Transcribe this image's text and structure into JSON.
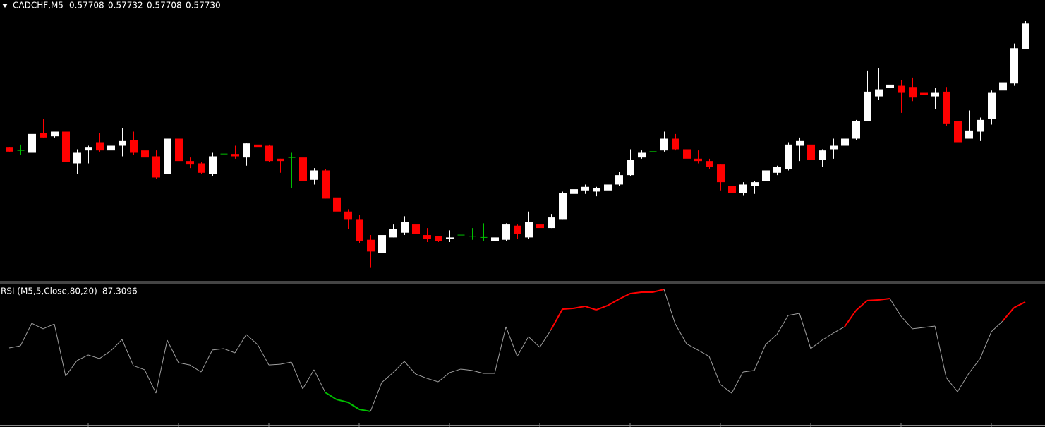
{
  "chart_data": [
    {
      "type": "candlestick",
      "title": "CADCHF,M5",
      "ohlc_labels": [
        "0.57708",
        "0.57732",
        "0.57708",
        "0.57730"
      ],
      "bull_color": "#ffffff",
      "bear_color": "#ff0000",
      "doji_color": "#00c000",
      "ylim": [
        0.57508,
        0.5775
      ],
      "open": [
        0.57625,
        0.57622,
        0.5762,
        0.57637,
        0.57634,
        0.57638,
        0.57611,
        0.57622,
        0.57629,
        0.57622,
        0.57626,
        0.57631,
        0.57622,
        0.57617,
        0.57602,
        0.57632,
        0.57613,
        0.57611,
        0.57602,
        0.57619,
        0.57619,
        0.57616,
        0.57627,
        0.57626,
        0.57615,
        0.57616,
        0.57616,
        0.57597,
        0.57605,
        0.57582,
        0.5757,
        0.57563,
        0.57546,
        0.57535,
        0.57548,
        0.57552,
        0.57559,
        0.5755,
        0.57549,
        0.57547,
        0.5755,
        0.57549,
        0.57548,
        0.57545,
        0.57546,
        0.57558,
        0.57548,
        0.57559,
        0.57556,
        0.57563,
        0.57585,
        0.57588,
        0.57587,
        0.57588,
        0.57593,
        0.57601,
        0.57616,
        0.57621,
        0.57622,
        0.57632,
        0.57623,
        0.57615,
        0.57613,
        0.5761,
        0.57592,
        0.57586,
        0.57592,
        0.57596,
        0.57603,
        0.57606,
        0.57626,
        0.57627,
        0.57614,
        0.57623,
        0.57626,
        0.57632,
        0.57647,
        0.57668,
        0.57675,
        0.57677,
        0.57676,
        0.57671,
        0.57668,
        0.57672,
        0.57647,
        0.57632,
        0.57638,
        0.57649,
        0.57673,
        0.57679,
        0.57708
      ],
      "high": [
        0.57625,
        0.57627,
        0.57643,
        0.57649,
        0.57638,
        0.57638,
        0.57623,
        0.57626,
        0.57637,
        0.57632,
        0.57641,
        0.57638,
        0.57625,
        0.57622,
        0.57632,
        0.57632,
        0.57616,
        0.57612,
        0.5762,
        0.57627,
        0.57626,
        0.57628,
        0.57641,
        0.57627,
        0.57615,
        0.5762,
        0.57619,
        0.57607,
        0.57606,
        0.57583,
        0.57572,
        0.57567,
        0.5755,
        0.5755,
        0.57559,
        0.57566,
        0.5756,
        0.57556,
        0.57549,
        0.57554,
        0.57556,
        0.57556,
        0.5756,
        0.5755,
        0.5756,
        0.57559,
        0.5757,
        0.5756,
        0.57568,
        0.57587,
        0.57595,
        0.57593,
        0.57591,
        0.57599,
        0.57604,
        0.57623,
        0.57622,
        0.57628,
        0.57638,
        0.57636,
        0.57627,
        0.57622,
        0.57615,
        0.5761,
        0.57594,
        0.57595,
        0.57596,
        0.57605,
        0.57609,
        0.57629,
        0.57633,
        0.57634,
        0.57623,
        0.57632,
        0.57639,
        0.57648,
        0.5769,
        0.57692,
        0.57694,
        0.57682,
        0.57684,
        0.57685,
        0.57675,
        0.57676,
        0.57647,
        0.57656,
        0.5765,
        0.57673,
        0.57698,
        0.57713,
        0.57732
      ],
      "low": [
        0.57621,
        0.57618,
        0.5762,
        0.57633,
        0.57633,
        0.57611,
        0.57602,
        0.57611,
        0.57621,
        0.57621,
        0.57617,
        0.57618,
        0.57614,
        0.57598,
        0.57602,
        0.57607,
        0.57607,
        0.57602,
        0.576,
        0.57613,
        0.57615,
        0.57609,
        0.57624,
        0.57612,
        0.57603,
        0.5759,
        0.57596,
        0.57593,
        0.57581,
        0.57568,
        0.57555,
        0.57543,
        0.57522,
        0.57534,
        0.57548,
        0.5755,
        0.57548,
        0.57544,
        0.57544,
        0.57544,
        0.57547,
        0.57546,
        0.57545,
        0.57543,
        0.57545,
        0.57547,
        0.57547,
        0.57548,
        0.57556,
        0.57563,
        0.57584,
        0.57585,
        0.57583,
        0.57583,
        0.57592,
        0.576,
        0.57615,
        0.57614,
        0.57621,
        0.57622,
        0.57614,
        0.57611,
        0.57606,
        0.57588,
        0.57579,
        0.57584,
        0.57585,
        0.57584,
        0.57601,
        0.57605,
        0.57613,
        0.57612,
        0.57608,
        0.57615,
        0.57615,
        0.57631,
        0.57647,
        0.57665,
        0.57672,
        0.57654,
        0.57664,
        0.57668,
        0.57657,
        0.57643,
        0.57625,
        0.57632,
        0.5763,
        0.57644,
        0.57671,
        0.57677,
        0.57708
      ],
      "close": [
        0.57621,
        0.57622,
        0.57636,
        0.57633,
        0.57638,
        0.57612,
        0.5762,
        0.57625,
        0.57622,
        0.57626,
        0.5763,
        0.5762,
        0.57616,
        0.57599,
        0.57632,
        0.57613,
        0.5761,
        0.57603,
        0.57617,
        0.57619,
        0.57617,
        0.57628,
        0.57625,
        0.57613,
        0.57613,
        0.57616,
        0.57596,
        0.57605,
        0.57581,
        0.5757,
        0.57563,
        0.57545,
        0.57536,
        0.5755,
        0.57555,
        0.57561,
        0.57551,
        0.57547,
        0.57545,
        0.57548,
        0.5755,
        0.57549,
        0.57548,
        0.57548,
        0.57559,
        0.57551,
        0.57561,
        0.57556,
        0.57565,
        0.57586,
        0.57589,
        0.57591,
        0.5759,
        0.57593,
        0.57601,
        0.57614,
        0.5762,
        0.57621,
        0.57632,
        0.57623,
        0.57615,
        0.57613,
        0.57608,
        0.57595,
        0.57586,
        0.57593,
        0.57595,
        0.57605,
        0.57608,
        0.57627,
        0.5763,
        0.57614,
        0.57622,
        0.57626,
        0.57632,
        0.57647,
        0.57672,
        0.57674,
        0.57678,
        0.57671,
        0.57667,
        0.57669,
        0.57671,
        0.57645,
        0.57629,
        0.57639,
        0.57648,
        0.57671,
        0.5768,
        0.57709,
        0.5773
      ]
    },
    {
      "type": "line",
      "title": "RSI (M5,5,Close,80,20)",
      "ylim": [
        0,
        100
      ],
      "levels": [
        80,
        20
      ],
      "color": "#a0a0a0",
      "upper_color": "#ff0000",
      "lower_color": "#00c000",
      "values": [
        54.1,
        55.6,
        71.9,
        67.9,
        71.4,
        33.7,
        44.9,
        49.0,
        46.4,
        52.0,
        60.2,
        41.3,
        38.3,
        21.4,
        59.7,
        43.4,
        41.8,
        36.7,
        52.6,
        53.6,
        50.5,
        63.8,
        56.6,
        41.8,
        42.3,
        43.9,
        24.5,
        38.3,
        21.9,
        16.8,
        14.8,
        9.7,
        8.2,
        29.1,
        36.2,
        44.4,
        35.2,
        32.1,
        29.6,
        36.2,
        38.8,
        37.8,
        35.7,
        35.7,
        69.4,
        48.0,
        62.2,
        54.6,
        67.3,
        82.1,
        82.7,
        84.2,
        81.6,
        84.7,
        89.3,
        93.4,
        94.4,
        94.4,
        96.4,
        71.4,
        57.1,
        52.6,
        48.0,
        27.6,
        21.4,
        36.7,
        37.8,
        56.6,
        63.8,
        77.6,
        79.1,
        53.6,
        59.7,
        64.8,
        69.4,
        81.1,
        88.3,
        88.8,
        89.8,
        77.0,
        67.9,
        68.9,
        69.9,
        32.7,
        22.4,
        35.7,
        46.4,
        65.8,
        73.5,
        83.2,
        87.3096
      ]
    }
  ]
}
